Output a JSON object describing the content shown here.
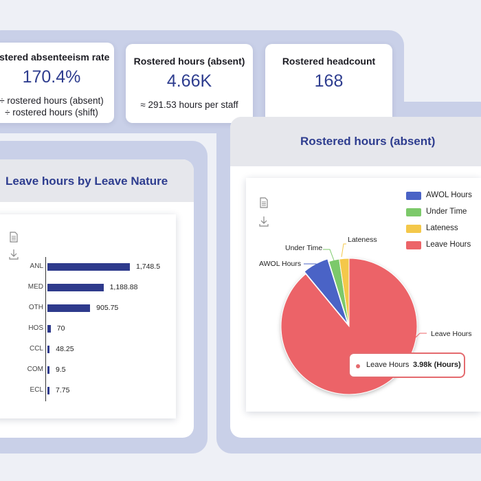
{
  "kpis": [
    {
      "title": "ostered absenteeism rate",
      "value": "170.4%",
      "sub1": "÷ rostered hours (absent)",
      "sub2": "÷ rostered hours (shift)"
    },
    {
      "title": "Rostered hours (absent)",
      "value": "4.66K",
      "sub1": "≈ 291.53 hours per staff"
    },
    {
      "title": "Rostered headcount",
      "value": "168"
    }
  ],
  "left_panel": {
    "title": "Leave hours by Leave Nature"
  },
  "right_panel": {
    "title": "Rostered hours (absent)"
  },
  "icons": {
    "export": "document-icon",
    "download": "download-icon"
  },
  "bar_chart": {
    "type": "bar",
    "orientation": "horizontal",
    "categories": [
      "ANL",
      "MED",
      "OTH",
      "HOS",
      "CCL",
      "COM",
      "ECL"
    ],
    "values": [
      1748.5,
      1188.88,
      905.75,
      70,
      48.25,
      9.5,
      7.75
    ],
    "value_labels": [
      "1,748.5",
      "1,188.88",
      "905.75",
      "70",
      "48.25",
      "9.5",
      "7.75"
    ],
    "color": "#2e3a8c"
  },
  "chart_data": {
    "type": "pie",
    "categories": [
      "AWOL Hours",
      "Under Time",
      "Lateness",
      "Leave Hours"
    ],
    "values": [
      6.2,
      2.5,
      2.3,
      89
    ],
    "colors": [
      "#4a63c6",
      "#7cc96a",
      "#f4c84a",
      "#ec6468"
    ],
    "legend": [
      "AWOL Hours",
      "Under Time",
      "Lateness",
      "Leave Hours"
    ],
    "legend_position": "top-right",
    "slice_labels": [
      "AWOL Hours",
      "Under Time",
      "Lateness",
      "Leave Hours"
    ],
    "tooltip": {
      "label": "Leave Hours",
      "value": "3.98k (Hours)"
    }
  }
}
